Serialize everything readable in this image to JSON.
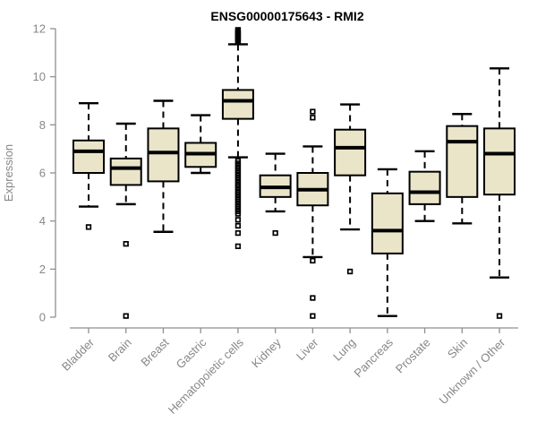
{
  "chart_data": {
    "type": "boxplot",
    "title": "ENSG00000175643 - RMI2",
    "ylabel": "Expression",
    "xlabel": "",
    "ylim": [
      0,
      12
    ],
    "yticks": [
      0,
      2,
      4,
      6,
      8,
      10,
      12
    ],
    "grid": false,
    "legend": false,
    "xticklabel_rotation": 45,
    "categories": [
      "Bladder",
      "Brain",
      "Breast",
      "Gastric",
      "Hematopoietic cells",
      "Kidney",
      "Liver",
      "Lung",
      "Pancreas",
      "Prostate",
      "Skin",
      "Unknown / Other"
    ],
    "series": [
      {
        "category": "Bladder",
        "low": 4.6,
        "q1": 6.0,
        "median": 6.9,
        "q3": 7.35,
        "high": 8.9,
        "outliers": [
          3.75
        ]
      },
      {
        "category": "Brain",
        "low": 4.7,
        "q1": 5.5,
        "median": 6.2,
        "q3": 6.6,
        "high": 8.05,
        "outliers": [
          3.05,
          0.05
        ]
      },
      {
        "category": "Breast",
        "low": 3.55,
        "q1": 5.65,
        "median": 6.85,
        "q3": 7.85,
        "high": 9.0,
        "outliers": []
      },
      {
        "category": "Gastric",
        "low": 6.0,
        "q1": 6.25,
        "median": 6.8,
        "q3": 7.25,
        "high": 8.4,
        "outliers": []
      },
      {
        "category": "Hematopoietic cells",
        "low": 6.65,
        "q1": 8.25,
        "median": 9.0,
        "q3": 9.45,
        "high": 11.35,
        "outliers": [
          11.45,
          11.5,
          11.55,
          11.6,
          11.65,
          11.7,
          11.75,
          11.8,
          11.85,
          11.9,
          11.95,
          6.5,
          6.4,
          6.3,
          6.2,
          6.1,
          6.0,
          5.9,
          5.8,
          5.7,
          5.6,
          5.5,
          5.4,
          5.3,
          5.2,
          5.1,
          5.0,
          4.9,
          4.8,
          4.7,
          4.6,
          4.5,
          4.4,
          4.3,
          4.05,
          3.8,
          3.5,
          2.95
        ]
      },
      {
        "category": "Kidney",
        "low": 4.4,
        "q1": 5.0,
        "median": 5.4,
        "q3": 5.9,
        "high": 6.8,
        "outliers": [
          3.5
        ]
      },
      {
        "category": "Liver",
        "low": 2.5,
        "q1": 4.65,
        "median": 5.3,
        "q3": 6.0,
        "high": 7.1,
        "outliers": [
          8.55,
          8.3,
          2.35,
          0.8,
          0.05
        ]
      },
      {
        "category": "Lung",
        "low": 3.65,
        "q1": 5.9,
        "median": 7.05,
        "q3": 7.8,
        "high": 8.85,
        "outliers": [
          1.9
        ]
      },
      {
        "category": "Pancreas",
        "low": 0.05,
        "q1": 2.65,
        "median": 3.6,
        "q3": 5.15,
        "high": 6.15,
        "outliers": []
      },
      {
        "category": "Prostate",
        "low": 4.0,
        "q1": 4.7,
        "median": 5.2,
        "q3": 6.05,
        "high": 6.9,
        "outliers": []
      },
      {
        "category": "Skin",
        "low": 3.9,
        "q1": 5.0,
        "median": 7.3,
        "q3": 7.95,
        "high": 8.45,
        "outliers": []
      },
      {
        "category": "Unknown / Other",
        "low": 1.65,
        "q1": 5.1,
        "median": 6.8,
        "q3": 7.85,
        "high": 10.35,
        "outliers": [
          0.05
        ]
      }
    ],
    "colors": {
      "background": "#ffffff",
      "box_fill": "#EAE5C9",
      "box_border": "#000000",
      "median": "#000000",
      "whisker": "#000000",
      "outlier": "#000000",
      "axis": "#909090",
      "tick_label": "#878787",
      "title": "#000000"
    }
  }
}
